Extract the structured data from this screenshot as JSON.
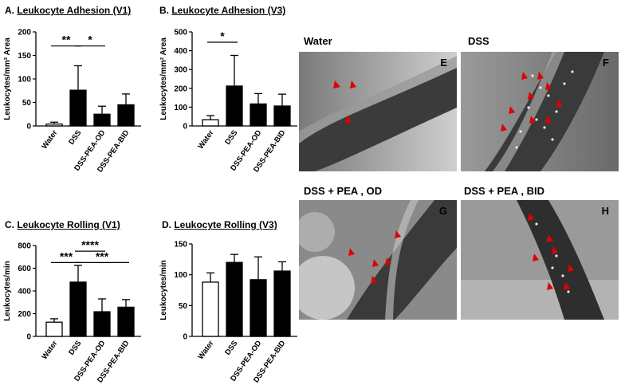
{
  "chart_data": [
    {
      "type": "bar",
      "panel": "A.",
      "title": "Leukocyte Adhesion (V1)",
      "ylabel": "Leukocytes/mm² Area",
      "xlabel": "",
      "ylim": [
        0,
        200
      ],
      "yticks": [
        "0",
        "50",
        "100",
        "150",
        "200"
      ],
      "categories": [
        "Water",
        "DSS",
        "DSS-PEA-OD",
        "DSS-PEA-BID"
      ],
      "values": [
        4,
        76,
        25,
        45
      ],
      "errors": [
        4,
        52,
        17,
        23
      ],
      "fills": [
        "#ffffff",
        "#000000",
        "#000000",
        "#000000"
      ],
      "significance": [
        {
          "from": 0,
          "to": 1,
          "label": "**",
          "y": 170
        },
        {
          "from": 1,
          "to": 2,
          "label": "*",
          "y": 170
        }
      ]
    },
    {
      "type": "bar",
      "panel": "B.",
      "title": "Leukocyte Adhesion (V3)",
      "ylabel": "Leukocytes/mm² Area",
      "xlabel": "",
      "ylim": [
        0,
        500
      ],
      "yticks": [
        "0",
        "100",
        "200",
        "300",
        "400",
        "500"
      ],
      "categories": [
        "Water",
        "DSS",
        "DSS-PEA-OD",
        "DSS-PEA-BID"
      ],
      "values": [
        33,
        212,
        117,
        106
      ],
      "errors": [
        22,
        163,
        55,
        63
      ],
      "fills": [
        "#ffffff",
        "#000000",
        "#000000",
        "#000000"
      ],
      "significance": [
        {
          "from": 0,
          "to": 1,
          "label": "*",
          "y": 445
        }
      ]
    },
    {
      "type": "bar",
      "panel": "C.",
      "title": "Leukocyte Rolling (V1)",
      "ylabel": "Leukocytes/min",
      "xlabel": "",
      "ylim": [
        0,
        800
      ],
      "yticks": [
        "0",
        "200",
        "400",
        "600",
        "800"
      ],
      "categories": [
        "Water",
        "DSS",
        "DSS-PEA-OD",
        "DSS-PEA-BID"
      ],
      "values": [
        125,
        478,
        217,
        257
      ],
      "errors": [
        30,
        147,
        113,
        67
      ],
      "fills": [
        "#ffffff",
        "#000000",
        "#000000",
        "#000000"
      ],
      "significance": [
        {
          "from": 1,
          "to": 2,
          "label": "****",
          "y": 750
        },
        {
          "from": 0,
          "to": 1,
          "label": "***",
          "y": 650
        },
        {
          "from": 1,
          "to": 3,
          "label": "***",
          "y": 650
        }
      ]
    },
    {
      "type": "bar",
      "panel": "D.",
      "title": "Leukocyte Rolling (V3)",
      "ylabel": "Leukocytes/min",
      "xlabel": "",
      "ylim": [
        0,
        150
      ],
      "yticks": [
        "0",
        "50",
        "100",
        "150"
      ],
      "categories": [
        "Water",
        "DSS",
        "DSS-PEA-OD",
        "DSS-PEA-BID"
      ],
      "values": [
        88,
        120,
        92,
        106
      ],
      "errors": [
        15,
        13,
        37,
        15
      ],
      "fills": [
        "#ffffff",
        "#000000",
        "#000000",
        "#000000"
      ],
      "significance": []
    }
  ],
  "micrographs": [
    {
      "label": "Water",
      "letter": "E"
    },
    {
      "label": "DSS",
      "letter": "F"
    },
    {
      "label": "DSS + PEA , OD",
      "letter": "G"
    },
    {
      "label": "DSS + PEA , BID",
      "letter": "H"
    }
  ],
  "colors": {
    "arrowhead": "#e00000",
    "micrograph_bg": "#3a3a3a"
  }
}
